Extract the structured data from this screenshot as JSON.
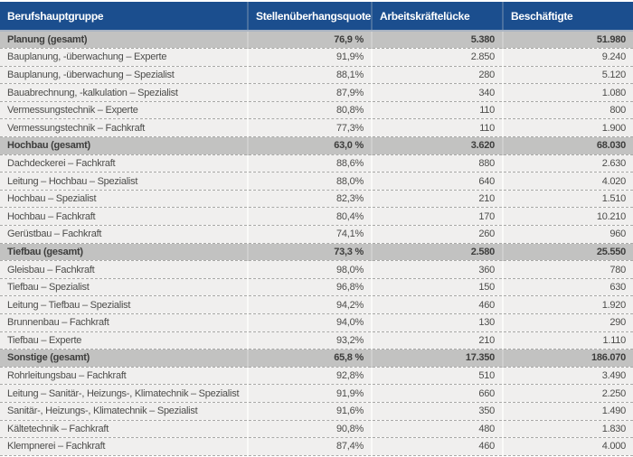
{
  "chart_data": {
    "type": "table",
    "title": "",
    "columns": [
      "Berufshauptgruppe",
      "Stellenüberhangsquote",
      "Arbeitskräftelücke",
      "Beschäftigte"
    ],
    "rows": [
      {
        "group": true,
        "label": "Planung (gesamt)",
        "quote": "76,9 %",
        "gap": "5.380",
        "employed": "51.980"
      },
      {
        "group": false,
        "label": "Bauplanung, -überwachung – Experte",
        "quote": "91,9%",
        "gap": "2.850",
        "employed": "9.240"
      },
      {
        "group": false,
        "label": "Bauplanung, -überwachung – Spezialist",
        "quote": "88,1%",
        "gap": "280",
        "employed": "5.120"
      },
      {
        "group": false,
        "label": "Bauabrechnung, -kalkulation – Spezialist",
        "quote": "87,9%",
        "gap": "340",
        "employed": "1.080"
      },
      {
        "group": false,
        "label": "Vermessungstechnik – Experte",
        "quote": "80,8%",
        "gap": "110",
        "employed": "800"
      },
      {
        "group": false,
        "label": "Vermessungstechnik – Fachkraft",
        "quote": "77,3%",
        "gap": "110",
        "employed": "1.900"
      },
      {
        "group": true,
        "label": "Hochbau (gesamt)",
        "quote": "63,0 %",
        "gap": "3.620",
        "employed": "68.030"
      },
      {
        "group": false,
        "label": "Dachdeckerei – Fachkraft",
        "quote": "88,6%",
        "gap": "880",
        "employed": "2.630"
      },
      {
        "group": false,
        "label": "Leitung – Hochbau – Spezialist",
        "quote": "88,0%",
        "gap": "640",
        "employed": "4.020"
      },
      {
        "group": false,
        "label": "Hochbau – Spezialist",
        "quote": "82,3%",
        "gap": "210",
        "employed": "1.510"
      },
      {
        "group": false,
        "label": "Hochbau – Fachkraft",
        "quote": "80,4%",
        "gap": "170",
        "employed": "10.210"
      },
      {
        "group": false,
        "label": "Gerüstbau – Fachkraft",
        "quote": "74,1%",
        "gap": "260",
        "employed": "960"
      },
      {
        "group": true,
        "label": "Tiefbau (gesamt)",
        "quote": "73,3 %",
        "gap": "2.580",
        "employed": "25.550"
      },
      {
        "group": false,
        "label": "Gleisbau – Fachkraft",
        "quote": "98,0%",
        "gap": "360",
        "employed": "780"
      },
      {
        "group": false,
        "label": "Tiefbau – Spezialist",
        "quote": "96,8%",
        "gap": "150",
        "employed": "630"
      },
      {
        "group": false,
        "label": "Leitung – Tiefbau – Spezialist",
        "quote": "94,2%",
        "gap": "460",
        "employed": "1.920"
      },
      {
        "group": false,
        "label": "Brunnenbau – Fachkraft",
        "quote": "94,0%",
        "gap": "130",
        "employed": "290"
      },
      {
        "group": false,
        "label": "Tiefbau – Experte",
        "quote": "93,2%",
        "gap": "210",
        "employed": "1.110"
      },
      {
        "group": true,
        "label": "Sonstige (gesamt)",
        "quote": "65,8 %",
        "gap": "17.350",
        "employed": "186.070"
      },
      {
        "group": false,
        "label": "Rohrleitungsbau – Fachkraft",
        "quote": "92,8%",
        "gap": "510",
        "employed": "3.490"
      },
      {
        "group": false,
        "label": "Leitung – Sanitär-, Heizungs-, Klimatechnik – Spezialist",
        "quote": "91,9%",
        "gap": "660",
        "employed": "2.250"
      },
      {
        "group": false,
        "label": "Sanitär-, Heizungs-, Klimatechnik – Spezialist",
        "quote": "91,6%",
        "gap": "350",
        "employed": "1.490"
      },
      {
        "group": false,
        "label": "Kältetechnik – Fachkraft",
        "quote": "90,8%",
        "gap": "480",
        "employed": "1.830"
      },
      {
        "group": false,
        "label": "Klempnerei – Fachkraft",
        "quote": "87,4%",
        "gap": "460",
        "employed": "4.000"
      }
    ]
  },
  "colors": {
    "header_bg": "#1b4e8e",
    "header_separator": "#49709f",
    "header_text": "#ffffff",
    "under_header_line": "#a9b4c3",
    "section_row_bg": "#c2c2c1",
    "detail_row_bg": "#f0efee",
    "row_text": "#4c4c4a",
    "dashed_divider": "#a9a9a7"
  }
}
